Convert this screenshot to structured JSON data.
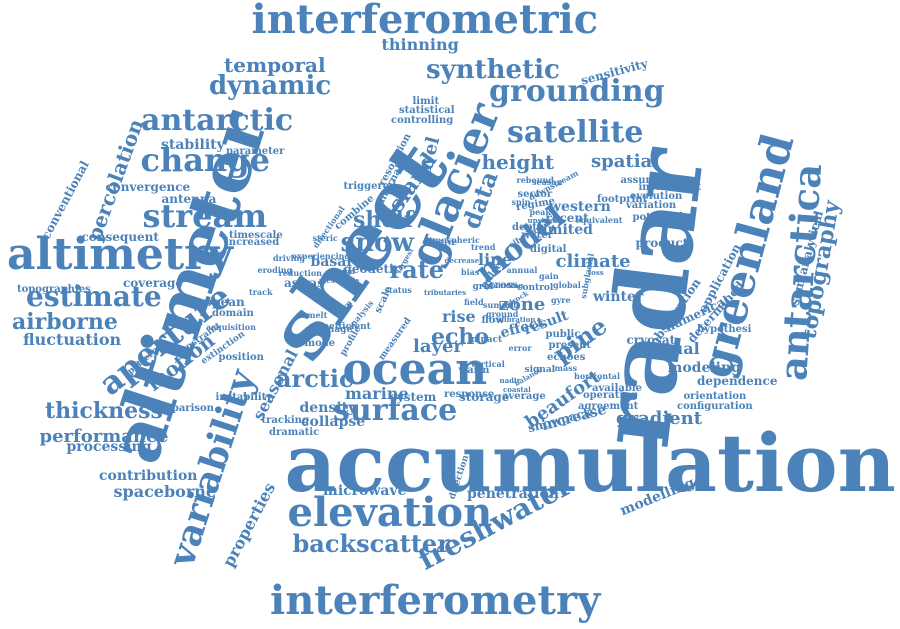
{
  "style": {
    "word_color": "#4a82b9",
    "background": "#ffffff"
  },
  "words": [
    "accumulation",
    "altimeter",
    "radar",
    "sheet",
    "interferometric",
    "interferometry",
    "altimetry",
    "greenland",
    "antarctica",
    "glacier",
    "ocean",
    "elevation",
    "surface",
    "satellite",
    "grounding",
    "synthetic",
    "stream",
    "change",
    "antarctic",
    "model",
    "topography",
    "variability",
    "aperture",
    "estimate",
    "backscatter",
    "freshwater",
    "dynamic",
    "temporal",
    "airborne",
    "snow",
    "height",
    "shelf",
    "island",
    "thickness",
    "percolation",
    "fluctuation",
    "performance",
    "spaceborne",
    "spatial",
    "level",
    "rate",
    "echo",
    "pine",
    "arctic",
    "annual",
    "properties",
    "seasonal",
    "motion",
    "processing",
    "contribution",
    "stability",
    "microwave",
    "penetration",
    "modelling",
    "gradient",
    "modeling",
    "collapse",
    "layer",
    "density",
    "marine",
    "beaufort",
    "zone",
    "thinning",
    "sensitivity",
    "data",
    "conventional",
    "convergence",
    "antenna",
    "consequent",
    "coverage",
    "topographies",
    "cryosat",
    "winter",
    "observation",
    "determined",
    "semianalytical",
    "application",
    "numerical",
    "hypothesi",
    "dependence",
    "orientation",
    "configuration",
    "product",
    "potential",
    "variation",
    "evolution",
    "instrument",
    "assumption",
    "footprint",
    "western",
    "recent",
    "limited",
    "climate",
    "line",
    "basal",
    "rise",
    "european",
    "domain",
    "position",
    "instability",
    "comparison",
    "tracking",
    "storage",
    "system",
    "dramatic",
    "mode",
    "increase",
    "snowpack",
    "operating",
    "agreement",
    "available",
    "average",
    "effect",
    "result",
    "public",
    "present",
    "echoes",
    "digital",
    "water",
    "depth",
    "sector",
    "regime",
    "limit",
    "statistical",
    "controlling",
    "parameter",
    "triggered",
    "combine",
    "internal",
    "resolution",
    "increased",
    "timescale",
    "pattern",
    "experiencing",
    "geodetic",
    "asiras",
    "track",
    "siberian",
    "scale",
    "flow",
    "warm",
    "pulse",
    "cross",
    "impact",
    "response",
    "direction",
    "measured",
    "profile",
    "constraint",
    "extinction",
    "directional",
    "driving",
    "eroding",
    "reduction",
    "period",
    "mesoscale",
    "atmospheric",
    "relative",
    "steric",
    "status",
    "largest",
    "decrease",
    "nadir",
    "coastal",
    "balance",
    "bedrock",
    "upstream",
    "downstream",
    "acquisition",
    "calibration",
    "sounding",
    "tributaries",
    "loss",
    "gain",
    "melt",
    "firn",
    "drainage",
    "coefficient",
    "analysis",
    "gyre",
    "control",
    "ground",
    "spin",
    "peak",
    "subglacial",
    "season",
    "equivalent",
    "global",
    "rebound",
    "mass",
    "annual",
    "summit",
    "field",
    "vertical",
    "horizontal",
    "error",
    "signal",
    "grid",
    "bias",
    "trend",
    "basin",
    "ice",
    "sea"
  ]
}
